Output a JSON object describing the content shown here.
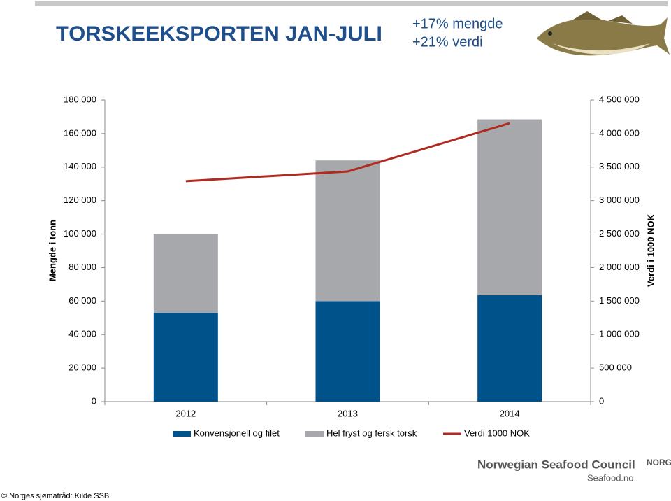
{
  "header": {
    "title": "TORSKEEKSPORTEN JAN-JULI",
    "highlights": [
      "+17% mengde",
      "+21% verdi"
    ]
  },
  "chart_data": {
    "type": "bar",
    "stacked": true,
    "categories": [
      "2012",
      "2013",
      "2014"
    ],
    "series": [
      {
        "name": "Konvensjonell og filet",
        "color": "#00538a",
        "values": [
          53000,
          60000,
          63500
        ]
      },
      {
        "name": "Hel fryst og fersk torsk",
        "color": "#a7a8ab",
        "values": [
          47000,
          84000,
          105000
        ]
      },
      {
        "name": "Verdi 1000 NOK",
        "type": "line",
        "axis": "y2",
        "color": "#b02a20",
        "values": [
          3290000,
          3435000,
          4155000
        ]
      }
    ],
    "ylabel": "Mengde i tonn",
    "y2label": "Verdi i 1000 NOK",
    "ylim": [
      0,
      180000
    ],
    "yticks": [
      0,
      {
        "value": 20000,
        "label": "20 000"
      },
      {
        "value": 40000,
        "label": "40 000"
      },
      {
        "value": 60000,
        "label": "60 000"
      },
      {
        "value": 80000,
        "label": "80 000"
      },
      {
        "value": 100000,
        "label": "100 000"
      },
      {
        "value": 120000,
        "label": "120 000"
      },
      {
        "value": 140000,
        "label": "140 000"
      },
      {
        "value": 160000,
        "label": "160 000"
      },
      {
        "value": 180000,
        "label": "180 000"
      }
    ],
    "y2lim": [
      0,
      4500000
    ],
    "y2ticks": [
      0,
      {
        "value": 500000,
        "label": "500 000"
      },
      {
        "value": 1000000,
        "label": "1 000 000"
      },
      {
        "value": 1500000,
        "label": "1 500 000"
      },
      {
        "value": 2000000,
        "label": "2 000 000"
      },
      {
        "value": 2500000,
        "label": "2 500 000"
      },
      {
        "value": 3000000,
        "label": "3 000 000"
      },
      {
        "value": 3500000,
        "label": "3 500 000"
      },
      {
        "value": 4000000,
        "label": "4 000 000"
      },
      {
        "value": 4500000,
        "label": "4 500 000"
      }
    ],
    "grid": false
  },
  "footer": {
    "source": "© Norges sjømatråd: Kilde SSB",
    "logo_name": "Norwegian Seafood Council",
    "logo_url": "Seafood.no",
    "badge": "NORGE"
  }
}
